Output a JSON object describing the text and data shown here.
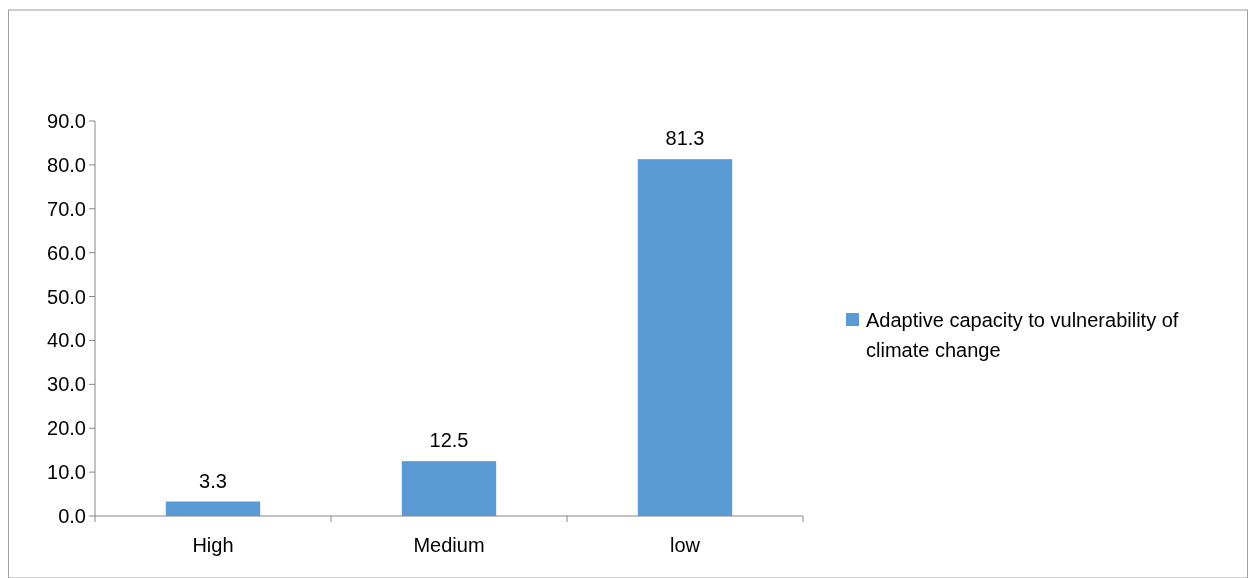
{
  "chart_data": {
    "type": "bar",
    "categories": [
      "High",
      "Medium",
      "low"
    ],
    "series": [
      {
        "name": "Adaptive capacity to vulnerability of climate change",
        "color": "#5b9bd5",
        "values": [
          3.3,
          12.5,
          81.3
        ]
      }
    ],
    "ylim": [
      0,
      90
    ],
    "yticks": [
      {
        "value": 0,
        "label": "0.0"
      },
      {
        "value": 10,
        "label": "10.0"
      },
      {
        "value": 20,
        "label": "20.0"
      },
      {
        "value": 30,
        "label": "30.0"
      },
      {
        "value": 40,
        "label": "40.0"
      },
      {
        "value": 50,
        "label": "50.0"
      },
      {
        "value": 60,
        "label": "60.0"
      },
      {
        "value": 70,
        "label": "70.0"
      },
      {
        "value": 80,
        "label": "80.0"
      },
      {
        "value": 90,
        "label": "90.0"
      }
    ],
    "data_labels": true,
    "grid": false,
    "legend": "right"
  }
}
